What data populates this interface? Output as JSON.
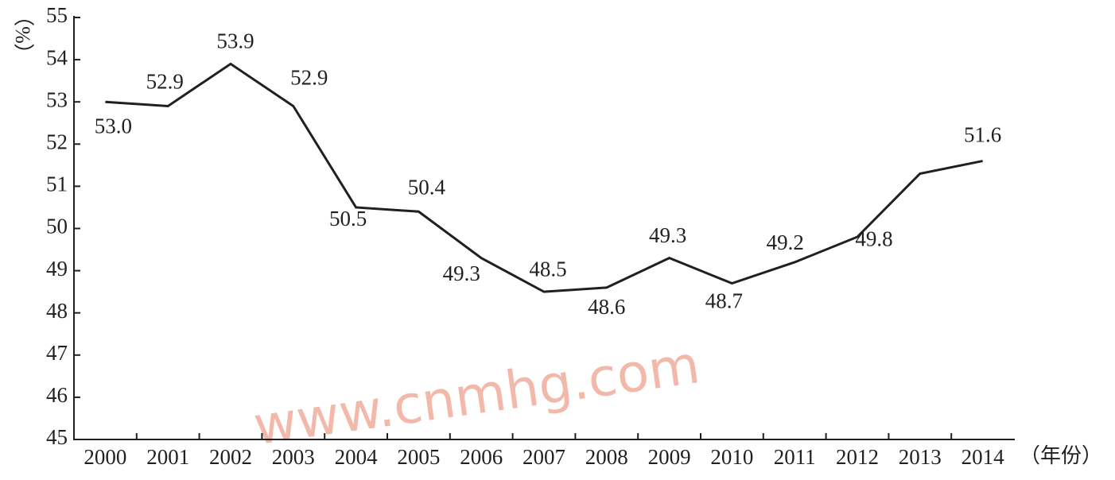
{
  "chart_data": {
    "type": "line",
    "y_label": "（%）",
    "x_label": "（年份）",
    "watermark": "www.cnmhg.com",
    "categories": [
      "2000",
      "2001",
      "2002",
      "2003",
      "2004",
      "2005",
      "2006",
      "2007",
      "2008",
      "2009",
      "2010",
      "2011",
      "2012",
      "2013",
      "2014"
    ],
    "values": [
      53.0,
      52.9,
      53.9,
      52.9,
      50.5,
      50.4,
      49.3,
      48.5,
      48.6,
      49.3,
      48.7,
      49.2,
      49.8,
      51.3,
      51.6
    ],
    "value_labels": [
      "53.0",
      "52.9",
      "53.9",
      "52.9",
      "50.5",
      "50.4",
      "49.3",
      "48.5",
      "48.6",
      "49.3",
      "48.7",
      "49.2",
      "49.8",
      null,
      "51.6"
    ],
    "color": "#231f20",
    "ylim": [
      45,
      55
    ],
    "yticks": [
      45,
      46,
      47,
      48,
      49,
      50,
      51,
      52,
      53,
      54,
      55
    ]
  }
}
